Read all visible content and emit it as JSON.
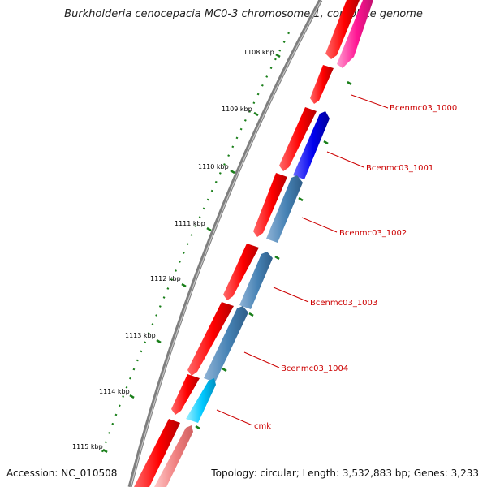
{
  "title": "Burkholderia cenocepacia MC0-3 chromosome 1, complete genome",
  "footer": {
    "accession": "Accession: NC_010508",
    "summary": "Topology: circular; Length: 3,532,883 bp; Genes: 3,233"
  },
  "ticks": [
    "1108 kbp",
    "1109 kbp",
    "1110 kbp",
    "1111 kbp",
    "1112 kbp",
    "1113 kbp",
    "1114 kbp",
    "1115 kbp"
  ],
  "gene_labels": [
    "Bcenmc03_1000",
    "Bcenmc03_1001",
    "Bcenmc03_1002",
    "Bcenmc03_1003",
    "Bcenmc03_1004",
    "cmk"
  ],
  "colors": {
    "backbone": "#7f7f7f",
    "tick": "#1a7f1a",
    "cds_red": "#ff0000",
    "label": "#cc0000",
    "steelblue": "#4682b4",
    "blue": "#0000ee",
    "cyan": "#00c8ff",
    "pink": "#ff1493",
    "light_red": "#f08080"
  }
}
